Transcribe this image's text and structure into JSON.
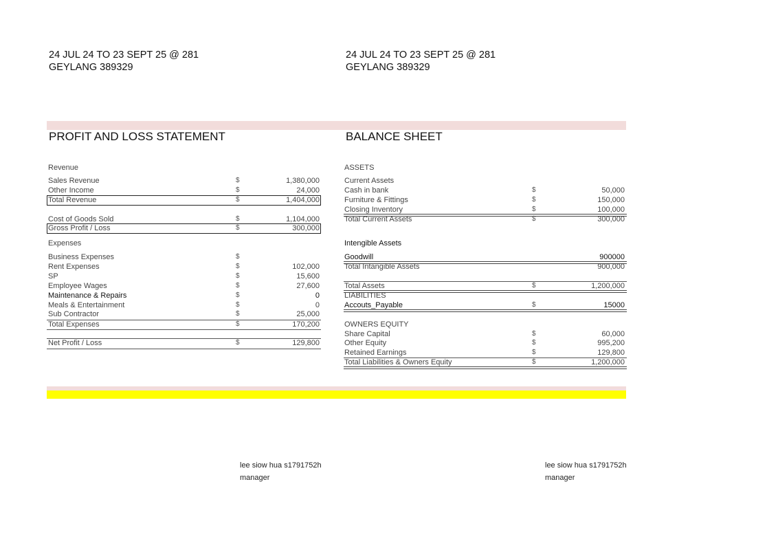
{
  "header_left": {
    "line1": "24 JUL 24 TO 23 SEPT 25 @ 281",
    "line2": "GEYLANG 389329"
  },
  "header_right": {
    "line1": "24 JUL 24 TO 23 SEPT 25 @ 281",
    "line2": "GEYLANG 389329"
  },
  "pnl": {
    "title": "PROFIT AND LOSS STATEMENT",
    "rows": [
      {
        "label": "Revenue",
        "cur": "",
        "value": ""
      },
      {
        "label": "Sales Revenue",
        "cur": "$",
        "value": "1,380,000"
      },
      {
        "label": "Other Income",
        "cur": "$",
        "value": "24,000"
      },
      {
        "label": "Total Revenue",
        "cur": "$",
        "value": "1,404,000"
      },
      {
        "label": "Cost of Goods Sold",
        "cur": "$",
        "value": "1,104,000"
      },
      {
        "label": "Gross Profit / Loss",
        "cur": "$",
        "value": "300,000"
      },
      {
        "label": "Expenses",
        "cur": "",
        "value": ""
      },
      {
        "label": "Business Expenses",
        "cur": "$",
        "value": ""
      },
      {
        "label": "Rent Expenses",
        "cur": "$",
        "value": "102,000"
      },
      {
        "label": "SP",
        "cur": "$",
        "value": "15,600"
      },
      {
        "label": "Employee Wages",
        "cur": "$",
        "value": "27,600"
      },
      {
        "label": "Maintenance  & Repairs",
        "cur": "$",
        "value": "0"
      },
      {
        "label": "Meals & Entertainment",
        "cur": "$",
        "value": "0"
      },
      {
        "label": "Sub Contractor",
        "cur": "$",
        "value": "25,000"
      },
      {
        "label": "Total Expenses",
        "cur": "$",
        "value": "170,200"
      },
      {
        "label": "Net  Profit / Loss",
        "cur": "$",
        "value": "129,800"
      }
    ]
  },
  "balance": {
    "title": "BALANCE SHEET",
    "rows": [
      {
        "label": "ASSETS",
        "cur": "",
        "value": ""
      },
      {
        "label": "Current Assets",
        "cur": "",
        "value": ""
      },
      {
        "label": "Cash in bank",
        "cur": "$",
        "value": "50,000"
      },
      {
        "label": "Furniture & Fittings",
        "cur": "$",
        "value": "150,000"
      },
      {
        "label": "Closing Inventory",
        "cur": "$",
        "value": "100,000"
      },
      {
        "label": "Total Current Assets",
        "cur": "$",
        "value": "300,000"
      },
      {
        "label": "Intengible Assets",
        "cur": "",
        "value": ""
      },
      {
        "label": "Goodwill",
        "cur": "",
        "value": "900000"
      },
      {
        "label": "Total Intangible Assets",
        "cur": "",
        "value": "900,000"
      },
      {
        "label": "Total Assets",
        "cur": "$",
        "value": "1,200,000"
      },
      {
        "label": "LIABILITIES",
        "cur": "",
        "value": ""
      },
      {
        "label": "Accouts_Payable",
        "cur": "$",
        "value": "15000"
      },
      {
        "label": "OWNERS EQUITY",
        "cur": "",
        "value": ""
      },
      {
        "label": "Share Capital",
        "cur": "$",
        "value": "60,000"
      },
      {
        "label": "Other Equity",
        "cur": "$",
        "value": "995,200"
      },
      {
        "label": "Retained Earnings",
        "cur": "$",
        "value": "129,800"
      },
      {
        "label": "Total Liabilities & Owners Equity",
        "cur": "$",
        "value": "1,200,000"
      }
    ]
  },
  "signatures": [
    {
      "name": "lee siow hua s1791752h",
      "role": "manager"
    },
    {
      "name": "lee siow hua s1791752h",
      "role": "manager"
    }
  ],
  "colors": {
    "pink_band": "#f2dcdb",
    "yellow_band": "#ffff00"
  }
}
